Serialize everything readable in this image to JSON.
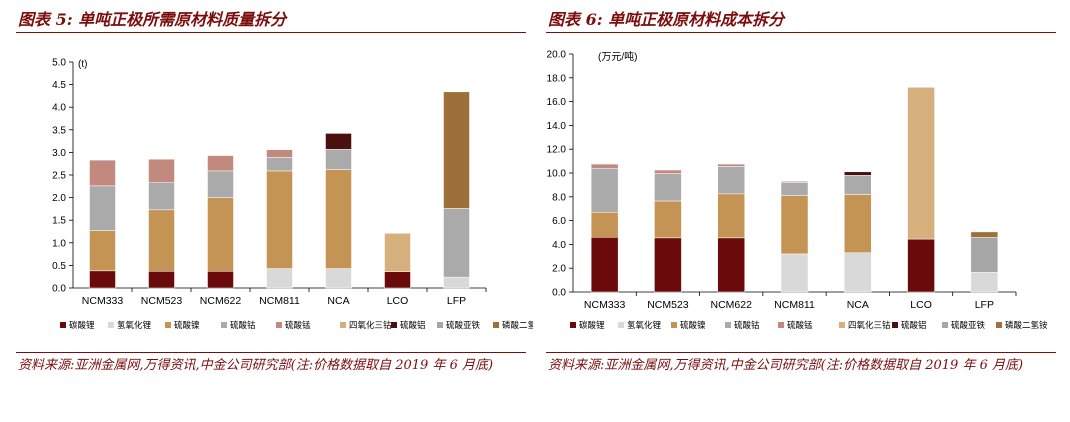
{
  "left": {
    "title": "图表 5: 单吨正极所需原材料质量拆分",
    "source": "资料来源:亚洲金属网,万得资讯,中金公司研究部(注:价格数据取自 2019 年 6 月底)"
  },
  "right": {
    "title": "图表 6: 单吨正极原材料成本拆分",
    "source": "资料来源:亚洲金属网,万得资讯,中金公司研究部(注:价格数据取自 2019 年 6 月底)"
  },
  "chart_data": [
    {
      "type": "bar",
      "stacked": true,
      "title": "",
      "unit_label": "(t)",
      "ylim": [
        0,
        5.0
      ],
      "yticks": [
        "0.0",
        "0.5",
        "1.0",
        "1.5",
        "2.0",
        "2.5",
        "3.0",
        "3.5",
        "4.0",
        "4.5",
        "5.0"
      ],
      "grid": false,
      "legend_position": "bottom",
      "categories": [
        "NCM333",
        "NCM523",
        "NCM622",
        "NCM811",
        "NCA",
        "LCO",
        "LFP"
      ],
      "series": [
        {
          "name": "碳酸锂",
          "color": "#6b0a0a",
          "values": [
            0.38,
            0.37,
            0.37,
            0,
            0,
            0.36,
            0
          ]
        },
        {
          "name": "氢氧化锂",
          "color": "#d9d9d9",
          "values": [
            0,
            0,
            0,
            0.43,
            0.43,
            0,
            0.24
          ]
        },
        {
          "name": "硫酸镍",
          "color": "#c49455",
          "values": [
            0.89,
            1.36,
            1.63,
            2.16,
            2.19,
            0,
            0
          ]
        },
        {
          "name": "硫酸钴",
          "color": "#aaaaaa",
          "values": [
            0.99,
            0.6,
            0.59,
            0.3,
            0.45,
            0,
            1.52
          ]
        },
        {
          "name": "硫酸锰",
          "color": "#c2897f",
          "values": [
            0.57,
            0.52,
            0.34,
            0.17,
            0,
            0,
            0
          ]
        },
        {
          "name": "四氧化三钴",
          "color": "#d6b07c",
          "values": [
            0,
            0,
            0,
            0,
            0,
            0.85,
            0
          ]
        },
        {
          "name": "硫酸铝",
          "color": "#4a0f0f",
          "values": [
            0,
            0,
            0,
            0,
            0.35,
            0,
            0
          ]
        },
        {
          "name": "硫酸亚铁",
          "color": "#a6a6a6",
          "values": [
            0,
            0,
            0,
            0,
            0,
            0,
            0
          ]
        },
        {
          "name": "磷酸二氢铵",
          "color": "#9c7038",
          "values": [
            0,
            0,
            0,
            0,
            0,
            0,
            2.58
          ]
        }
      ]
    },
    {
      "type": "bar",
      "stacked": true,
      "title": "",
      "unit_label": "(万元/吨)",
      "ylim": [
        0,
        20.0
      ],
      "yticks": [
        "0.0",
        "2.0",
        "4.0",
        "6.0",
        "8.0",
        "10.0",
        "12.0",
        "14.0",
        "16.0",
        "18.0",
        "20.0"
      ],
      "grid": false,
      "legend_position": "bottom",
      "categories": [
        "NCM333",
        "NCM523",
        "NCM622",
        "NCM811",
        "NCA",
        "LCO",
        "LFP"
      ],
      "series": [
        {
          "name": "碳酸锂",
          "color": "#6b0a0a",
          "values": [
            4.6,
            4.55,
            4.55,
            0,
            0,
            4.45,
            0
          ]
        },
        {
          "name": "氢氧化锂",
          "color": "#d9d9d9",
          "values": [
            0,
            0,
            0,
            3.2,
            3.3,
            0,
            1.65
          ]
        },
        {
          "name": "硫酸镍",
          "color": "#c49455",
          "values": [
            2.1,
            3.1,
            3.7,
            4.9,
            4.9,
            0,
            0
          ]
        },
        {
          "name": "硫酸钴",
          "color": "#aaaaaa",
          "values": [
            3.7,
            2.3,
            2.3,
            1.1,
            1.6,
            0,
            0
          ]
        },
        {
          "name": "硫酸锰",
          "color": "#c2897f",
          "values": [
            0.35,
            0.3,
            0.2,
            0.1,
            0,
            0,
            0
          ]
        },
        {
          "name": "四氧化三钴",
          "color": "#d6b07c",
          "values": [
            0,
            0,
            0,
            0,
            0,
            12.75,
            0
          ]
        },
        {
          "name": "硫酸铝",
          "color": "#4a0f0f",
          "values": [
            0,
            0,
            0,
            0,
            0.3,
            0,
            0
          ]
        },
        {
          "name": "硫酸亚铁",
          "color": "#a6a6a6",
          "values": [
            0,
            0,
            0,
            0,
            0,
            0,
            2.95
          ]
        },
        {
          "name": "磷酸二氢铵",
          "color": "#9c7038",
          "values": [
            0,
            0,
            0,
            0,
            0,
            0,
            0.45
          ]
        }
      ]
    }
  ]
}
